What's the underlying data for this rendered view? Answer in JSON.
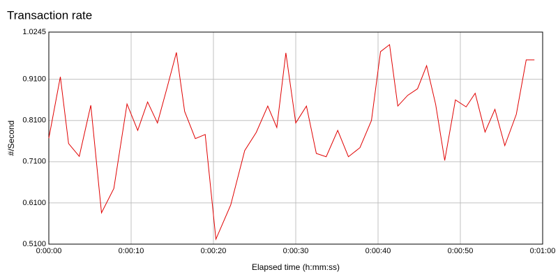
{
  "chart_data": {
    "type": "line",
    "title": "Transaction rate",
    "x_label": "Elapsed time (h:mm:ss)",
    "y_label": "#/Second",
    "x": [
      0,
      1.4,
      2.4,
      3.7,
      5.1,
      6.4,
      7.9,
      9.5,
      10.8,
      12.0,
      13.2,
      14.4,
      15.5,
      16.5,
      17.8,
      19.0,
      20.3,
      22.1,
      23.8,
      25.2,
      26.6,
      27.7,
      28.8,
      30.0,
      31.3,
      32.5,
      33.7,
      35.1,
      36.4,
      37.8,
      39.2,
      40.3,
      41.4,
      42.4,
      43.6,
      44.8,
      45.9,
      47.0,
      48.1,
      49.4,
      50.7,
      51.8,
      53.0,
      54.2,
      55.4,
      56.8,
      58.0,
      59.0
    ],
    "series": [
      {
        "name": "Transaction rate",
        "color": "#e00000",
        "values": [
          0.767,
          0.916,
          0.754,
          0.723,
          0.847,
          0.586,
          0.645,
          0.85,
          0.786,
          0.855,
          0.804,
          0.892,
          0.975,
          0.832,
          0.766,
          0.776,
          0.522,
          0.605,
          0.737,
          0.781,
          0.845,
          0.793,
          0.974,
          0.804,
          0.845,
          0.73,
          0.722,
          0.786,
          0.722,
          0.744,
          0.81,
          0.977,
          0.994,
          0.845,
          0.871,
          0.887,
          0.943,
          0.849,
          0.713,
          0.86,
          0.843,
          0.876,
          0.782,
          0.837,
          0.749,
          0.825,
          0.957,
          0.957
        ]
      }
    ],
    "xlim": [
      0,
      60
    ],
    "xticks": [
      {
        "value": 0,
        "label": "0:00:00"
      },
      {
        "value": 10,
        "label": "0:00:10"
      },
      {
        "value": 20,
        "label": "0:00:20"
      },
      {
        "value": 30,
        "label": "0:00:30"
      },
      {
        "value": 40,
        "label": "0:00:40"
      },
      {
        "value": 50,
        "label": "0:00:50"
      },
      {
        "value": 60,
        "label": "0:01:00"
      }
    ],
    "ylim": [
      0.51,
      1.0245
    ],
    "yticks": [
      {
        "value": 0.51,
        "label": "0.5100"
      },
      {
        "value": 0.61,
        "label": "0.6100"
      },
      {
        "value": 0.71,
        "label": "0.7100"
      },
      {
        "value": 0.81,
        "label": "0.8100"
      },
      {
        "value": 0.91,
        "label": "0.9100"
      },
      1.0245
    ],
    "grid": true
  }
}
